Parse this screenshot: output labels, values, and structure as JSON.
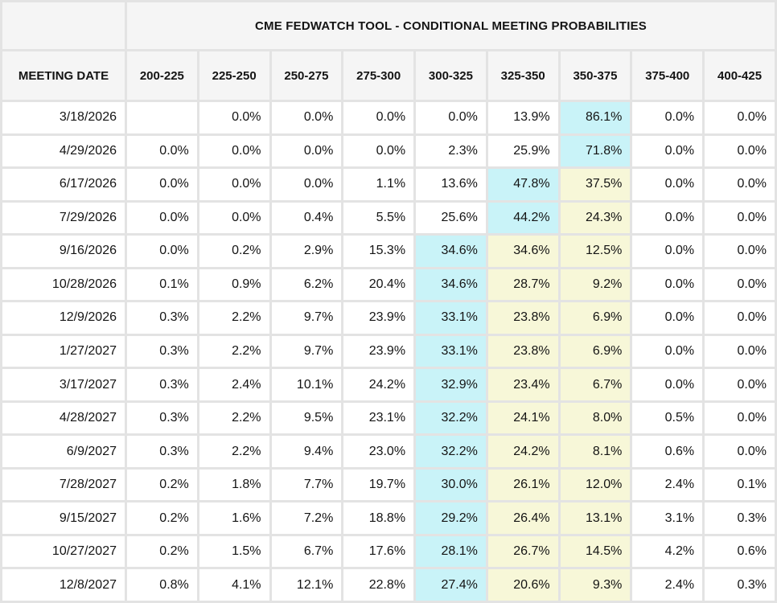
{
  "table": {
    "title": "CME FEDWATCH TOOL - CONDITIONAL MEETING PROBABILITIES",
    "row_header": "MEETING DATE",
    "columns": [
      "200-225",
      "225-250",
      "250-275",
      "275-300",
      "300-325",
      "325-350",
      "350-375",
      "375-400",
      "400-425"
    ],
    "highlight_colors": {
      "cyan": "#c9f3f8",
      "yellow": "#f7f7d8"
    },
    "rows": [
      {
        "date": "3/18/2026",
        "values": [
          "",
          "0.0%",
          "0.0%",
          "0.0%",
          "0.0%",
          "13.9%",
          "86.1%",
          "0.0%",
          "0.0%"
        ],
        "highlights": [
          "",
          "",
          "",
          "",
          "",
          "",
          "cyan",
          "",
          ""
        ]
      },
      {
        "date": "4/29/2026",
        "values": [
          "0.0%",
          "0.0%",
          "0.0%",
          "0.0%",
          "2.3%",
          "25.9%",
          "71.8%",
          "0.0%",
          "0.0%"
        ],
        "highlights": [
          "",
          "",
          "",
          "",
          "",
          "",
          "cyan",
          "",
          ""
        ]
      },
      {
        "date": "6/17/2026",
        "values": [
          "0.0%",
          "0.0%",
          "0.0%",
          "1.1%",
          "13.6%",
          "47.8%",
          "37.5%",
          "0.0%",
          "0.0%"
        ],
        "highlights": [
          "",
          "",
          "",
          "",
          "",
          "cyan",
          "yellow",
          "",
          ""
        ]
      },
      {
        "date": "7/29/2026",
        "values": [
          "0.0%",
          "0.0%",
          "0.4%",
          "5.5%",
          "25.6%",
          "44.2%",
          "24.3%",
          "0.0%",
          "0.0%"
        ],
        "highlights": [
          "",
          "",
          "",
          "",
          "",
          "cyan",
          "yellow",
          "",
          ""
        ]
      },
      {
        "date": "9/16/2026",
        "values": [
          "0.0%",
          "0.2%",
          "2.9%",
          "15.3%",
          "34.6%",
          "34.6%",
          "12.5%",
          "0.0%",
          "0.0%"
        ],
        "highlights": [
          "",
          "",
          "",
          "",
          "cyan",
          "yellow",
          "yellow",
          "",
          ""
        ]
      },
      {
        "date": "10/28/2026",
        "values": [
          "0.1%",
          "0.9%",
          "6.2%",
          "20.4%",
          "34.6%",
          "28.7%",
          "9.2%",
          "0.0%",
          "0.0%"
        ],
        "highlights": [
          "",
          "",
          "",
          "",
          "cyan",
          "yellow",
          "yellow",
          "",
          ""
        ]
      },
      {
        "date": "12/9/2026",
        "values": [
          "0.3%",
          "2.2%",
          "9.7%",
          "23.9%",
          "33.1%",
          "23.8%",
          "6.9%",
          "0.0%",
          "0.0%"
        ],
        "highlights": [
          "",
          "",
          "",
          "",
          "cyan",
          "yellow",
          "yellow",
          "",
          ""
        ]
      },
      {
        "date": "1/27/2027",
        "values": [
          "0.3%",
          "2.2%",
          "9.7%",
          "23.9%",
          "33.1%",
          "23.8%",
          "6.9%",
          "0.0%",
          "0.0%"
        ],
        "highlights": [
          "",
          "",
          "",
          "",
          "cyan",
          "yellow",
          "yellow",
          "",
          ""
        ]
      },
      {
        "date": "3/17/2027",
        "values": [
          "0.3%",
          "2.4%",
          "10.1%",
          "24.2%",
          "32.9%",
          "23.4%",
          "6.7%",
          "0.0%",
          "0.0%"
        ],
        "highlights": [
          "",
          "",
          "",
          "",
          "cyan",
          "yellow",
          "yellow",
          "",
          ""
        ]
      },
      {
        "date": "4/28/2027",
        "values": [
          "0.3%",
          "2.2%",
          "9.5%",
          "23.1%",
          "32.2%",
          "24.1%",
          "8.0%",
          "0.5%",
          "0.0%"
        ],
        "highlights": [
          "",
          "",
          "",
          "",
          "cyan",
          "yellow",
          "yellow",
          "",
          ""
        ]
      },
      {
        "date": "6/9/2027",
        "values": [
          "0.3%",
          "2.2%",
          "9.4%",
          "23.0%",
          "32.2%",
          "24.2%",
          "8.1%",
          "0.6%",
          "0.0%"
        ],
        "highlights": [
          "",
          "",
          "",
          "",
          "cyan",
          "yellow",
          "yellow",
          "",
          ""
        ]
      },
      {
        "date": "7/28/2027",
        "values": [
          "0.2%",
          "1.8%",
          "7.7%",
          "19.7%",
          "30.0%",
          "26.1%",
          "12.0%",
          "2.4%",
          "0.1%"
        ],
        "highlights": [
          "",
          "",
          "",
          "",
          "cyan",
          "yellow",
          "yellow",
          "",
          ""
        ]
      },
      {
        "date": "9/15/2027",
        "values": [
          "0.2%",
          "1.6%",
          "7.2%",
          "18.8%",
          "29.2%",
          "26.4%",
          "13.1%",
          "3.1%",
          "0.3%"
        ],
        "highlights": [
          "",
          "",
          "",
          "",
          "cyan",
          "yellow",
          "yellow",
          "",
          ""
        ]
      },
      {
        "date": "10/27/2027",
        "values": [
          "0.2%",
          "1.5%",
          "6.7%",
          "17.6%",
          "28.1%",
          "26.7%",
          "14.5%",
          "4.2%",
          "0.6%"
        ],
        "highlights": [
          "",
          "",
          "",
          "",
          "cyan",
          "yellow",
          "yellow",
          "",
          ""
        ]
      },
      {
        "date": "12/8/2027",
        "values": [
          "0.8%",
          "4.1%",
          "12.1%",
          "22.8%",
          "27.4%",
          "20.6%",
          "9.3%",
          "2.4%",
          "0.3%"
        ],
        "highlights": [
          "",
          "",
          "",
          "",
          "cyan",
          "yellow",
          "yellow",
          "",
          ""
        ]
      }
    ]
  }
}
